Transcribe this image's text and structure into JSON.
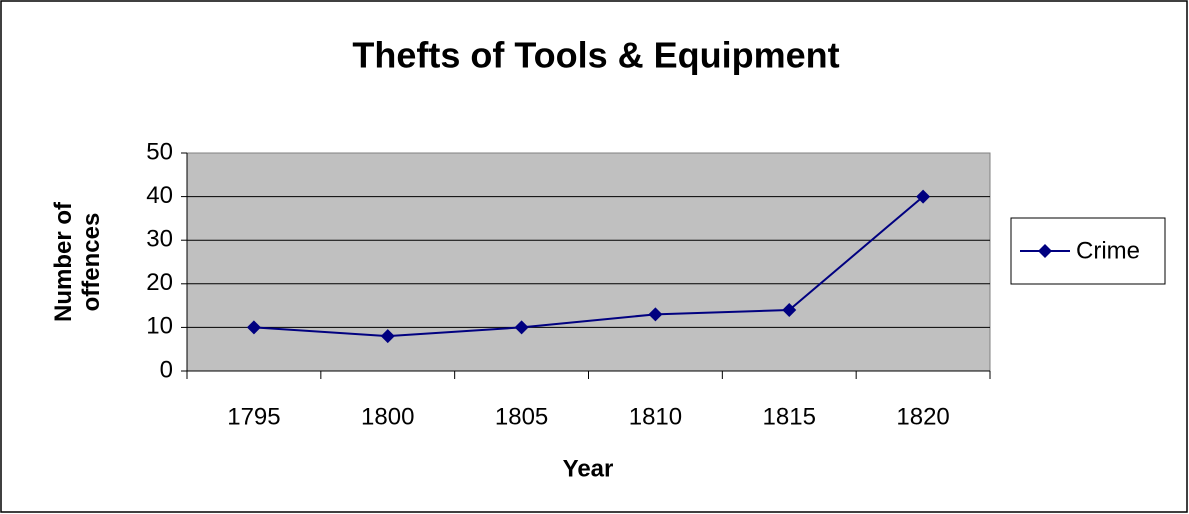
{
  "chart_data": {
    "type": "line",
    "title": "Thefts of Tools & Equipment",
    "x_label": "Year",
    "y_label": "Number of offences",
    "categories": [
      "1795",
      "1800",
      "1805",
      "1810",
      "1815",
      "1820"
    ],
    "series": [
      {
        "name": "Crime",
        "color": "#000080",
        "values": [
          10,
          8,
          10,
          13,
          14,
          40
        ]
      }
    ],
    "ylim": [
      0,
      50
    ],
    "yticks": [
      0,
      10,
      20,
      30,
      40,
      50
    ],
    "grid": true,
    "legend": "right"
  }
}
